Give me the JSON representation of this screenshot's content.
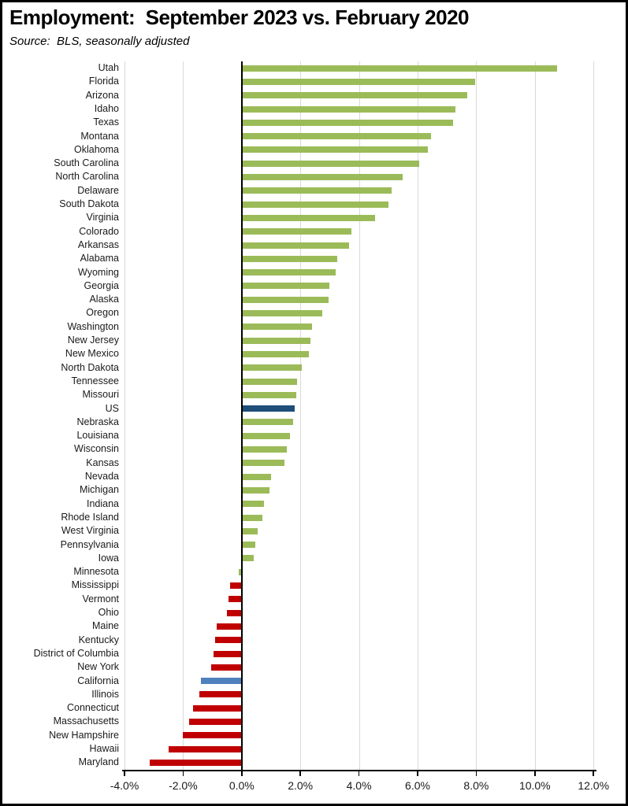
{
  "header": {
    "title": "Employment:  September 2023 vs. February 2020",
    "source": "Source:  BLS, seasonally adjusted"
  },
  "palette": {
    "green": "#9BBB59",
    "red": "#C00000",
    "navy": "#1F4E79",
    "blue": "#4F81BD",
    "gridline": "#D9D9D9",
    "axis": "#000000"
  },
  "chart_data": {
    "type": "bar",
    "orientation": "horizontal",
    "title": "Employment:  September 2023 vs. February 2020",
    "subtitle": "Source:  BLS, seasonally adjusted",
    "value_unit": "percent",
    "grid": true,
    "legend": false,
    "x_axis": {
      "min": -4.0,
      "max": 12.0,
      "tick_step": 2.0,
      "tick_values": [
        -4,
        -2,
        0,
        2,
        4,
        6,
        8,
        10,
        12
      ],
      "tick_labels": [
        "-4.0%",
        "-2.0%",
        "0.0%",
        "2.0%",
        "4.0%",
        "6.0%",
        "8.0%",
        "10.0%",
        "12.0%"
      ]
    },
    "items": [
      {
        "label": "Utah",
        "value": 10.75,
        "color": "green"
      },
      {
        "label": "Florida",
        "value": 7.95,
        "color": "green"
      },
      {
        "label": "Arizona",
        "value": 7.7,
        "color": "green"
      },
      {
        "label": "Idaho",
        "value": 7.3,
        "color": "green"
      },
      {
        "label": "Texas",
        "value": 7.2,
        "color": "green"
      },
      {
        "label": "Montana",
        "value": 6.45,
        "color": "green"
      },
      {
        "label": "Oklahoma",
        "value": 6.35,
        "color": "green"
      },
      {
        "label": "South Carolina",
        "value": 6.05,
        "color": "green"
      },
      {
        "label": "North Carolina",
        "value": 5.5,
        "color": "green"
      },
      {
        "label": "Delaware",
        "value": 5.1,
        "color": "green"
      },
      {
        "label": "South Dakota",
        "value": 5.0,
        "color": "green"
      },
      {
        "label": "Virginia",
        "value": 4.55,
        "color": "green"
      },
      {
        "label": "Colorado",
        "value": 3.75,
        "color": "green"
      },
      {
        "label": "Arkansas",
        "value": 3.65,
        "color": "green"
      },
      {
        "label": "Alabama",
        "value": 3.25,
        "color": "green"
      },
      {
        "label": "Wyoming",
        "value": 3.2,
        "color": "green"
      },
      {
        "label": "Georgia",
        "value": 3.0,
        "color": "green"
      },
      {
        "label": "Alaska",
        "value": 2.95,
        "color": "green"
      },
      {
        "label": "Oregon",
        "value": 2.75,
        "color": "green"
      },
      {
        "label": "Washington",
        "value": 2.4,
        "color": "green"
      },
      {
        "label": "New Jersey",
        "value": 2.35,
        "color": "green"
      },
      {
        "label": "New Mexico",
        "value": 2.3,
        "color": "green"
      },
      {
        "label": "North Dakota",
        "value": 2.05,
        "color": "green"
      },
      {
        "label": "Tennessee",
        "value": 1.9,
        "color": "green"
      },
      {
        "label": "Missouri",
        "value": 1.85,
        "color": "green"
      },
      {
        "label": "US",
        "value": 1.8,
        "color": "navy"
      },
      {
        "label": "Nebraska",
        "value": 1.75,
        "color": "green"
      },
      {
        "label": "Louisiana",
        "value": 1.65,
        "color": "green"
      },
      {
        "label": "Wisconsin",
        "value": 1.55,
        "color": "green"
      },
      {
        "label": "Kansas",
        "value": 1.45,
        "color": "green"
      },
      {
        "label": "Nevada",
        "value": 1.0,
        "color": "green"
      },
      {
        "label": "Michigan",
        "value": 0.95,
        "color": "green"
      },
      {
        "label": "Indiana",
        "value": 0.75,
        "color": "green"
      },
      {
        "label": "Rhode Island",
        "value": 0.7,
        "color": "green"
      },
      {
        "label": "West Virginia",
        "value": 0.55,
        "color": "green"
      },
      {
        "label": "Pennsylvania",
        "value": 0.45,
        "color": "green"
      },
      {
        "label": "Iowa",
        "value": 0.4,
        "color": "green"
      },
      {
        "label": "Minnesota",
        "value": -0.1,
        "color": "green"
      },
      {
        "label": "Mississippi",
        "value": -0.4,
        "color": "red"
      },
      {
        "label": "Vermont",
        "value": -0.45,
        "color": "red"
      },
      {
        "label": "Ohio",
        "value": -0.5,
        "color": "red"
      },
      {
        "label": "Maine",
        "value": -0.85,
        "color": "red"
      },
      {
        "label": "Kentucky",
        "value": -0.9,
        "color": "red"
      },
      {
        "label": "District of Columbia",
        "value": -0.95,
        "color": "red"
      },
      {
        "label": "New York",
        "value": -1.05,
        "color": "red"
      },
      {
        "label": "California",
        "value": -1.4,
        "color": "blue"
      },
      {
        "label": "Illinois",
        "value": -1.45,
        "color": "red"
      },
      {
        "label": "Connecticut",
        "value": -1.65,
        "color": "red"
      },
      {
        "label": "Massachusetts",
        "value": -1.8,
        "color": "red"
      },
      {
        "label": "New Hampshire",
        "value": -2.0,
        "color": "red"
      },
      {
        "label": "Hawaii",
        "value": -2.5,
        "color": "red"
      },
      {
        "label": "Maryland",
        "value": -3.15,
        "color": "red"
      }
    ]
  }
}
